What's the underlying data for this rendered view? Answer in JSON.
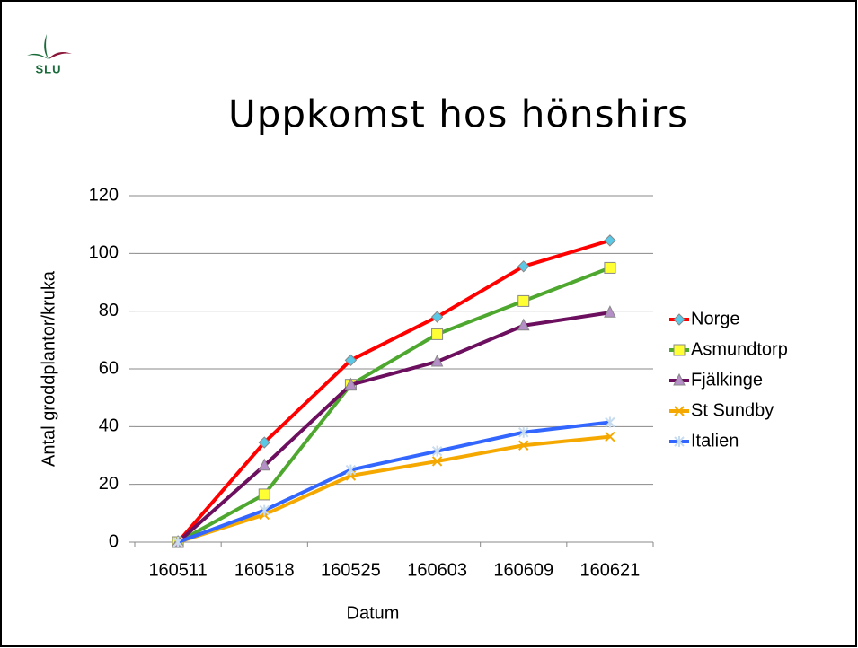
{
  "logo": "SLU",
  "chart_data": {
    "type": "line",
    "title": "Uppkomst hos hönshirs",
    "x_label": "Datum",
    "y_label": "Antal groddplantor/kruka",
    "categories": [
      "160511",
      "160518",
      "160525",
      "160603",
      "160609",
      "160621"
    ],
    "series": [
      {
        "name": "Norge",
        "color": "#ff0000",
        "marker": "diamond",
        "marker_color": "#5bc8e6",
        "values": [
          0,
          34.5,
          63,
          78,
          95.5,
          104.5
        ]
      },
      {
        "name": "Asmundtorp",
        "color": "#4ea72e",
        "marker": "square",
        "marker_color": "#ffff33",
        "values": [
          0,
          16.5,
          54.5,
          72,
          83.5,
          95
        ]
      },
      {
        "name": "Fjälkinge",
        "color": "#6b0f5e",
        "marker": "triangle",
        "marker_color": "#b58fc7",
        "values": [
          0,
          26.5,
          54.5,
          62.5,
          75,
          79.5
        ]
      },
      {
        "name": "St Sundby",
        "color": "#f5a800",
        "marker": "x",
        "marker_color": "#f5a800",
        "values": [
          0,
          9.5,
          23,
          28,
          33.5,
          36.5
        ]
      },
      {
        "name": "Italien",
        "color": "#3366ff",
        "marker": "star",
        "marker_color": "#c8dcf0",
        "values": [
          0,
          11,
          25,
          31.5,
          38,
          41.5
        ]
      }
    ],
    "ylim": [
      0,
      120
    ],
    "yticks": [
      0,
      20,
      40,
      60,
      80,
      100,
      120
    ],
    "grid": true,
    "legend": "right"
  }
}
